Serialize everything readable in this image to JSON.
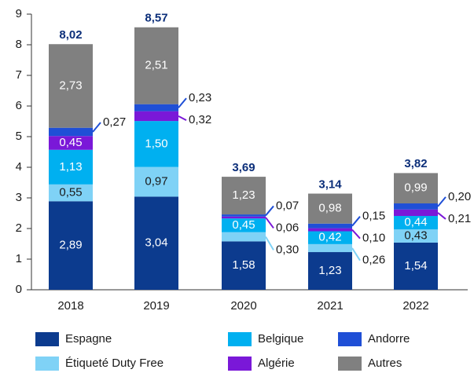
{
  "chart_data": {
    "type": "stacked_bar",
    "categories": [
      "2018",
      "2019",
      "2020",
      "2021",
      "2022"
    ],
    "series": [
      {
        "name": "Espagne",
        "color": "#0c3b8e",
        "values": [
          2.89,
          3.04,
          1.58,
          1.23,
          1.54
        ],
        "value_labels": [
          "2,89",
          "3,04",
          "1,58",
          "1,23",
          "1,54"
        ]
      },
      {
        "name": "Étiqueté Duty Free",
        "color": "#7fd2f6",
        "values": [
          0.55,
          0.97,
          0.3,
          0.26,
          0.43
        ],
        "value_labels": [
          "0,55",
          "0,97",
          "0,30",
          "0,26",
          "0,43"
        ]
      },
      {
        "name": "Belgique",
        "color": "#00b0f0",
        "values": [
          1.13,
          1.5,
          0.45,
          0.42,
          0.44
        ],
        "value_labels": [
          "1,13",
          "1,50",
          "0,45",
          "0,42",
          "0,44"
        ]
      },
      {
        "name": "Algérie",
        "color": "#7a18d8",
        "values": [
          0.45,
          0.32,
          0.06,
          0.1,
          0.21
        ],
        "value_labels": [
          "0,45",
          "0,32",
          "0,06",
          "0,10",
          "0,21"
        ]
      },
      {
        "name": "Andorre",
        "color": "#1f4fd6",
        "values": [
          0.27,
          0.23,
          0.07,
          0.15,
          0.2
        ],
        "value_labels": [
          "0,27",
          "0,23",
          "0,07",
          "0,15",
          "0,20"
        ]
      },
      {
        "name": "Autres",
        "color": "#808080",
        "values": [
          2.73,
          2.51,
          1.23,
          0.98,
          0.99
        ],
        "value_labels": [
          "2,73",
          "2,51",
          "1,23",
          "0,98",
          "0,99"
        ]
      }
    ],
    "totals": [
      8.02,
      8.57,
      3.69,
      3.14,
      3.82
    ],
    "total_labels": [
      "8,02",
      "8,57",
      "3,69",
      "3,14",
      "3,82"
    ],
    "ylim": [
      0,
      9
    ],
    "yticks": [
      0,
      1,
      2,
      3,
      4,
      5,
      6,
      7,
      8,
      9
    ]
  }
}
